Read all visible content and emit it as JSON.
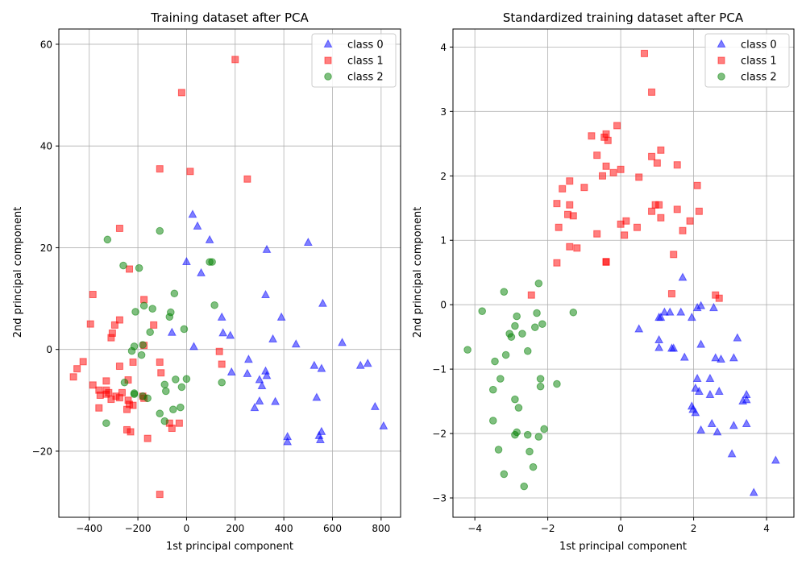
{
  "chart_data": [
    {
      "type": "scatter",
      "title": "Training dataset after PCA",
      "xlabel": "1st principal component",
      "ylabel": "2nd principal component",
      "xlim": [
        -525,
        880
      ],
      "ylim": [
        -33,
        63
      ],
      "xticks": [
        -400,
        -200,
        0,
        200,
        400,
        600,
        800
      ],
      "yticks": [
        -20,
        0,
        20,
        40,
        60
      ],
      "grid": true,
      "legend": "top-right",
      "series": [
        {
          "name": "class 0",
          "marker": "triangle",
          "color": "#0000ff",
          "points": [
            [
              25,
              26.5
            ],
            [
              45,
              24.2
            ],
            [
              95,
              21.5
            ],
            [
              0,
              17.2
            ],
            [
              60,
              15
            ],
            [
              -60,
              3.3
            ],
            [
              30,
              0.5
            ],
            [
              330,
              19.6
            ],
            [
              500,
              21
            ],
            [
              325,
              10.7
            ],
            [
              145,
              6.3
            ],
            [
              390,
              6.3
            ],
            [
              560,
              9
            ],
            [
              150,
              3.2
            ],
            [
              180,
              2.7
            ],
            [
              355,
              2
            ],
            [
              450,
              1
            ],
            [
              640,
              1.3
            ],
            [
              255,
              -2
            ],
            [
              185,
              -4.5
            ],
            [
              250,
              -4.8
            ],
            [
              325,
              -4.3
            ],
            [
              330,
              -5.2
            ],
            [
              300,
              -6
            ],
            [
              310,
              -7.2
            ],
            [
              525,
              -3.2
            ],
            [
              555,
              -3.8
            ],
            [
              715,
              -3.2
            ],
            [
              745,
              -2.8
            ],
            [
              365,
              -10.3
            ],
            [
              300,
              -10.2
            ],
            [
              280,
              -11.5
            ],
            [
              535,
              -9.5
            ],
            [
              775,
              -11.3
            ],
            [
              810,
              -15.1
            ],
            [
              415,
              -17.2
            ],
            [
              415,
              -18.2
            ],
            [
              555,
              -16.2
            ],
            [
              545,
              -17
            ],
            [
              550,
              -17.8
            ]
          ]
        },
        {
          "name": "class 1",
          "marker": "square",
          "color": "#ff0000",
          "points": [
            [
              200,
              57
            ],
            [
              -20,
              50.5
            ],
            [
              -110,
              35.5
            ],
            [
              15,
              35
            ],
            [
              250,
              33.5
            ],
            [
              -275,
              23.8
            ],
            [
              -235,
              15.8
            ],
            [
              -385,
              10.8
            ],
            [
              -175,
              9.8
            ],
            [
              -395,
              5
            ],
            [
              -275,
              5.8
            ],
            [
              -295,
              4.8
            ],
            [
              -135,
              4.8
            ],
            [
              -305,
              3.2
            ],
            [
              -310,
              2.3
            ],
            [
              -175,
              0.8
            ],
            [
              -425,
              -2.4
            ],
            [
              -110,
              -2.5
            ],
            [
              -220,
              -2.5
            ],
            [
              -450,
              -3.8
            ],
            [
              -275,
              -3.3
            ],
            [
              -105,
              -4.6
            ],
            [
              -465,
              -5.4
            ],
            [
              -330,
              -6.2
            ],
            [
              -240,
              -6
            ],
            [
              -385,
              -7
            ],
            [
              -360,
              -8
            ],
            [
              -330,
              -8
            ],
            [
              -330,
              -8.8
            ],
            [
              -320,
              -8.5
            ],
            [
              -265,
              -8.5
            ],
            [
              -290,
              -9.2
            ],
            [
              -355,
              -9
            ],
            [
              -310,
              -9.8
            ],
            [
              -275,
              -9.5
            ],
            [
              -180,
              -9.2
            ],
            [
              -175,
              -9.6
            ],
            [
              -240,
              -10
            ],
            [
              -235,
              -10.8
            ],
            [
              -360,
              -11.5
            ],
            [
              -220,
              -11
            ],
            [
              -245,
              -11.8
            ],
            [
              -70,
              -14.5
            ],
            [
              -30,
              -14.5
            ],
            [
              -60,
              -15.5
            ],
            [
              -245,
              -15.8
            ],
            [
              -230,
              -16.2
            ],
            [
              -160,
              -17.5
            ],
            [
              -110,
              -28.5
            ],
            [
              135,
              -0.4
            ],
            [
              145,
              -2.9
            ]
          ]
        },
        {
          "name": "class 2",
          "marker": "circle",
          "color": "#008000",
          "points": [
            [
              -110,
              23.3
            ],
            [
              -325,
              21.6
            ],
            [
              -260,
              16.5
            ],
            [
              -195,
              16
            ],
            [
              -50,
              11
            ],
            [
              -175,
              8.6
            ],
            [
              -140,
              8
            ],
            [
              -210,
              7.4
            ],
            [
              -65,
              7.3
            ],
            [
              -70,
              6.4
            ],
            [
              115,
              8.7
            ],
            [
              95,
              17.2
            ],
            [
              105,
              17.2
            ],
            [
              -150,
              3.4
            ],
            [
              -10,
              4
            ],
            [
              -215,
              0.6
            ],
            [
              -180,
              0.9
            ],
            [
              -225,
              -0.3
            ],
            [
              -185,
              -1.1
            ],
            [
              -255,
              -6.5
            ],
            [
              -45,
              -5.9
            ],
            [
              0,
              -5.8
            ],
            [
              -90,
              -6.9
            ],
            [
              -20,
              -7.4
            ],
            [
              -85,
              -8.2
            ],
            [
              -215,
              -8.6
            ],
            [
              -215,
              -8.8
            ],
            [
              -180,
              -9.2
            ],
            [
              -160,
              -9.6
            ],
            [
              -25,
              -11.4
            ],
            [
              -55,
              -11.8
            ],
            [
              -110,
              -12.6
            ],
            [
              -90,
              -14.1
            ],
            [
              -330,
              -14.5
            ],
            [
              145,
              -6.5
            ]
          ]
        }
      ]
    },
    {
      "type": "scatter",
      "title": "Standardized training dataset after PCA",
      "xlabel": "1st principal component",
      "ylabel": "2nd principal component",
      "xlim": [
        -4.6,
        4.75
      ],
      "ylim": [
        -3.3,
        4.28
      ],
      "xticks": [
        -4,
        -2,
        0,
        2,
        4
      ],
      "yticks": [
        -3,
        -2,
        -1,
        0,
        1,
        2,
        3,
        4
      ],
      "grid": true,
      "legend": "top-right",
      "series": [
        {
          "name": "class 0",
          "marker": "triangle",
          "color": "#0000ff",
          "points": [
            [
              1.7,
              0.42
            ],
            [
              0.5,
              -0.38
            ],
            [
              1.05,
              -0.2
            ],
            [
              1.1,
              -0.2
            ],
            [
              1.2,
              -0.12
            ],
            [
              1.35,
              -0.12
            ],
            [
              1.65,
              -0.12
            ],
            [
              1.95,
              -0.2
            ],
            [
              2.2,
              -0.02
            ],
            [
              2.1,
              -0.05
            ],
            [
              2.55,
              -0.05
            ],
            [
              1.05,
              -0.55
            ],
            [
              2.2,
              -0.62
            ],
            [
              3.2,
              -0.52
            ],
            [
              1.4,
              -0.68
            ],
            [
              1.45,
              -0.68
            ],
            [
              1.05,
              -0.67
            ],
            [
              1.75,
              -0.82
            ],
            [
              2.6,
              -0.83
            ],
            [
              2.75,
              -0.85
            ],
            [
              3.1,
              -0.83
            ],
            [
              2.1,
              -1.15
            ],
            [
              2.45,
              -1.15
            ],
            [
              2.05,
              -1.3
            ],
            [
              2.15,
              -1.35
            ],
            [
              2.45,
              -1.4
            ],
            [
              2.7,
              -1.35
            ],
            [
              3.45,
              -1.4
            ],
            [
              3.35,
              -1.5
            ],
            [
              3.45,
              -1.48
            ],
            [
              1.95,
              -1.58
            ],
            [
              1.98,
              -1.63
            ],
            [
              2.05,
              -1.68
            ],
            [
              2.5,
              -1.85
            ],
            [
              2.2,
              -1.95
            ],
            [
              2.65,
              -1.98
            ],
            [
              3.1,
              -1.88
            ],
            [
              3.45,
              -1.85
            ],
            [
              3.05,
              -2.32
            ],
            [
              4.25,
              -2.42
            ],
            [
              3.65,
              -2.92
            ]
          ]
        },
        {
          "name": "class 1",
          "marker": "square",
          "color": "#ff0000",
          "points": [
            [
              0.65,
              3.9
            ],
            [
              0.85,
              3.3
            ],
            [
              -0.1,
              2.78
            ],
            [
              -0.4,
              2.65
            ],
            [
              -0.45,
              2.6
            ],
            [
              -0.35,
              2.55
            ],
            [
              -0.8,
              2.62
            ],
            [
              1.1,
              2.4
            ],
            [
              -0.65,
              2.32
            ],
            [
              0.85,
              2.3
            ],
            [
              1.0,
              2.2
            ],
            [
              -0.4,
              2.15
            ],
            [
              1.55,
              2.17
            ],
            [
              -0.2,
              2.05
            ],
            [
              0.0,
              2.1
            ],
            [
              -0.5,
              2.0
            ],
            [
              0.5,
              1.98
            ],
            [
              -1.4,
              1.92
            ],
            [
              -1.0,
              1.82
            ],
            [
              -1.6,
              1.8
            ],
            [
              2.1,
              1.85
            ],
            [
              -1.75,
              1.57
            ],
            [
              -1.4,
              1.55
            ],
            [
              0.95,
              1.55
            ],
            [
              1.05,
              1.55
            ],
            [
              0.85,
              1.45
            ],
            [
              1.55,
              1.48
            ],
            [
              2.15,
              1.45
            ],
            [
              -1.45,
              1.4
            ],
            [
              -1.3,
              1.38
            ],
            [
              1.1,
              1.35
            ],
            [
              1.9,
              1.3
            ],
            [
              0.15,
              1.3
            ],
            [
              0.0,
              1.25
            ],
            [
              -1.7,
              1.2
            ],
            [
              0.45,
              1.2
            ],
            [
              1.7,
              1.15
            ],
            [
              -0.65,
              1.1
            ],
            [
              0.1,
              1.08
            ],
            [
              -1.4,
              0.9
            ],
            [
              -1.2,
              0.88
            ],
            [
              1.45,
              0.78
            ],
            [
              -0.4,
              0.67
            ],
            [
              -0.4,
              0.66
            ],
            [
              -1.75,
              0.65
            ],
            [
              1.4,
              0.17
            ],
            [
              -2.45,
              0.15
            ],
            [
              2.6,
              0.15
            ],
            [
              2.7,
              0.1
            ]
          ]
        },
        {
          "name": "class 2",
          "marker": "circle",
          "color": "#008000",
          "points": [
            [
              -2.25,
              0.33
            ],
            [
              -3.2,
              0.2
            ],
            [
              -3.8,
              -0.1
            ],
            [
              -2.3,
              -0.13
            ],
            [
              -1.3,
              -0.12
            ],
            [
              -2.85,
              -0.18
            ],
            [
              -2.15,
              -0.3
            ],
            [
              -2.9,
              -0.33
            ],
            [
              -2.35,
              -0.35
            ],
            [
              -3.05,
              -0.45
            ],
            [
              -3.0,
              -0.5
            ],
            [
              -2.7,
              -0.45
            ],
            [
              -4.2,
              -0.7
            ],
            [
              -2.55,
              -0.72
            ],
            [
              -3.15,
              -0.78
            ],
            [
              -3.45,
              -0.88
            ],
            [
              -3.3,
              -1.15
            ],
            [
              -2.2,
              -1.15
            ],
            [
              -1.75,
              -1.23
            ],
            [
              -2.2,
              -1.27
            ],
            [
              -3.5,
              -1.32
            ],
            [
              -2.9,
              -1.47
            ],
            [
              -2.8,
              -1.6
            ],
            [
              -3.5,
              -1.8
            ],
            [
              -2.1,
              -1.93
            ],
            [
              -2.85,
              -1.98
            ],
            [
              -2.9,
              -2.02
            ],
            [
              -2.55,
              -2.02
            ],
            [
              -2.25,
              -2.05
            ],
            [
              -3.35,
              -2.25
            ],
            [
              -2.5,
              -2.28
            ],
            [
              -2.4,
              -2.52
            ],
            [
              -3.2,
              -2.63
            ],
            [
              -2.65,
              -2.82
            ]
          ]
        }
      ]
    }
  ]
}
